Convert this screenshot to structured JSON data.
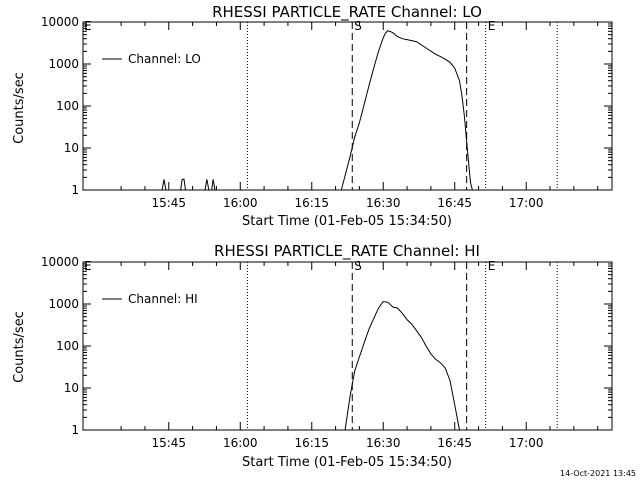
{
  "chart_data": [
    {
      "type": "line",
      "title": "RHESSI PARTICLE_RATE Channel: LO",
      "xlabel": "Start Time (01-Feb-05 15:34:50)",
      "ylabel": "Counts/sec",
      "yscale": "log",
      "ylim": [
        1,
        10000
      ],
      "xlim_min": [
        -8,
        103
      ],
      "x_ticks": [
        10,
        25,
        40,
        55,
        70,
        85
      ],
      "x_tick_labels": [
        "15:45",
        "16:00",
        "16:15",
        "16:30",
        "16:45",
        "17:00"
      ],
      "y_ticks": [
        1,
        10,
        100,
        1000,
        10000
      ],
      "y_tick_labels": [
        "1",
        "10",
        "100",
        "1000",
        "10000"
      ],
      "legend": {
        "label": "Channel: LO",
        "position": "top-left"
      },
      "markers": [
        {
          "x": 26.5,
          "style": "dotted",
          "label": ""
        },
        {
          "x": 48.5,
          "style": "dashed",
          "label": "S"
        },
        {
          "x": 72.5,
          "style": "dashed",
          "label": ""
        },
        {
          "x": 76.5,
          "style": "dotted",
          "label": "E"
        },
        {
          "x": 91.5,
          "style": "dotted",
          "label": ""
        }
      ],
      "corner_labels": [
        {
          "x": -8,
          "label": "E"
        }
      ],
      "series": [
        {
          "x": [
            8.6,
            9,
            9.4,
            12.5,
            12.8,
            13.2,
            13.5,
            17.6,
            18,
            18.4,
            19,
            19.3,
            19.7,
            46.2,
            47,
            48,
            49,
            50,
            51,
            52,
            53,
            54,
            55,
            55.5,
            56,
            57,
            58,
            59,
            60,
            62,
            64,
            66,
            67,
            68,
            69,
            70,
            71,
            71.5,
            72,
            72.5,
            73,
            73.3,
            73.7
          ],
          "y": [
            1,
            1.8,
            1,
            1,
            1.8,
            1.8,
            1,
            1,
            1.8,
            1,
            1,
            1.8,
            1,
            1,
            2.2,
            6,
            18,
            40,
            110,
            300,
            800,
            2000,
            4200,
            5500,
            6200,
            5600,
            4500,
            4000,
            3800,
            3400,
            2400,
            1700,
            1500,
            1300,
            1100,
            800,
            400,
            180,
            60,
            15,
            3.5,
            1.5,
            1
          ]
        }
      ]
    },
    {
      "type": "line",
      "title": "RHESSI PARTICLE_RATE Channel: HI",
      "xlabel": "Start Time (01-Feb-05 15:34:50)",
      "ylabel": "Counts/sec",
      "yscale": "log",
      "ylim": [
        1,
        10000
      ],
      "xlim_min": [
        -8,
        103
      ],
      "x_ticks": [
        10,
        25,
        40,
        55,
        70,
        85
      ],
      "x_tick_labels": [
        "15:45",
        "16:00",
        "16:15",
        "16:30",
        "16:45",
        "17:00"
      ],
      "y_ticks": [
        1,
        10,
        100,
        1000,
        10000
      ],
      "y_tick_labels": [
        "1",
        "10",
        "100",
        "1000",
        "10000"
      ],
      "legend": {
        "label": "Channel: HI",
        "position": "top-left"
      },
      "markers": [
        {
          "x": 26.5,
          "style": "dotted",
          "label": ""
        },
        {
          "x": 48.5,
          "style": "dashed",
          "label": "S"
        },
        {
          "x": 72.5,
          "style": "dashed",
          "label": ""
        },
        {
          "x": 76.5,
          "style": "dotted",
          "label": "E"
        },
        {
          "x": 91.5,
          "style": "dotted",
          "label": ""
        }
      ],
      "corner_labels": [
        {
          "x": -8,
          "label": "E"
        }
      ],
      "series": [
        {
          "x": [
            47,
            48,
            49,
            50,
            51,
            52,
            53,
            54,
            55,
            56,
            57,
            58,
            59,
            60,
            61,
            63,
            64,
            65,
            66,
            67,
            68,
            69,
            70,
            70.5,
            71
          ],
          "y": [
            1,
            6,
            25,
            55,
            120,
            250,
            450,
            800,
            1150,
            1100,
            850,
            800,
            600,
            420,
            330,
            160,
            100,
            65,
            48,
            40,
            30,
            15,
            4,
            2,
            1
          ]
        }
      ]
    }
  ],
  "footer": {
    "stamp": "14-Oct-2021 13:45"
  }
}
